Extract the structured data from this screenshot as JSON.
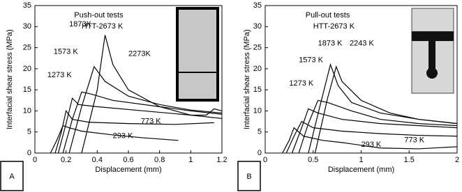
{
  "chart_data": [
    {
      "type": "line",
      "panel": "A",
      "title": "Push-out tests",
      "subtitle": "HTT-2673 K",
      "x_label": "Displacement (mm)",
      "y_label": "Interfacial shear stress (MPa)",
      "color": "#000000",
      "xlim": [
        0,
        1.2
      ],
      "xticks": [
        0,
        0.2,
        0.4,
        0.6,
        0.8,
        1,
        1.2
      ],
      "ylim": [
        0,
        35
      ],
      "yticks": [
        0,
        5,
        10,
        15,
        20,
        25,
        30,
        35
      ],
      "series": [
        {
          "name": "293 K",
          "x": [
            0.1,
            0.14,
            0.18,
            0.22,
            0.3,
            0.5,
            0.7,
            0.92
          ],
          "values": [
            0,
            3,
            6.5,
            6,
            5.2,
            4.3,
            3.6,
            3
          ]
        },
        {
          "name": "773 K",
          "x": [
            0.13,
            0.17,
            0.2,
            0.24,
            0.35,
            0.6,
            0.9,
            1.15
          ],
          "values": [
            0,
            5,
            10,
            8,
            7.3,
            7,
            6.8,
            7.2
          ]
        },
        {
          "name": "1273 K",
          "x": [
            0.15,
            0.2,
            0.24,
            0.28,
            0.4,
            0.7,
            1,
            1.2
          ],
          "values": [
            0,
            7,
            13,
            11.5,
            11,
            10,
            9,
            8.2
          ]
        },
        {
          "name": "1573 K",
          "x": [
            0.18,
            0.24,
            0.3,
            0.36,
            0.5,
            0.8,
            1,
            1.2
          ],
          "values": [
            0,
            8,
            14.5,
            14,
            12.5,
            11,
            10,
            9.2
          ]
        },
        {
          "name": "1873K",
          "x": [
            0.22,
            0.3,
            0.38,
            0.45,
            0.6,
            0.8,
            1,
            1.2
          ],
          "values": [
            0,
            11,
            20.5,
            17,
            13.5,
            11.5,
            10.2,
            9.5
          ]
        },
        {
          "name": "2273K",
          "x": [
            0.3,
            0.4,
            0.45,
            0.5,
            0.6,
            0.8,
            1,
            1.1,
            1.15,
            1.2
          ],
          "values": [
            0,
            15,
            28,
            21,
            15,
            11,
            9,
            9,
            10.5,
            10
          ]
        }
      ]
    },
    {
      "type": "line",
      "panel": "B",
      "title": "Pull-out tests",
      "subtitle": "HTT-2673 K",
      "x_label": "Displacement (mm)",
      "y_label": "Interfacial shear stress (MPa)",
      "color": "#000000",
      "xlim": [
        0,
        2
      ],
      "xticks": [
        0,
        0.5,
        1,
        1.5,
        2
      ],
      "ylim": [
        0,
        35
      ],
      "yticks": [
        0,
        5,
        10,
        15,
        20,
        25,
        30,
        35
      ],
      "series": [
        {
          "name": "293 K",
          "x": [
            0.18,
            0.25,
            0.3,
            0.4,
            0.6,
            0.8,
            1.2,
            1.6,
            2
          ],
          "values": [
            0,
            3,
            6,
            4,
            3,
            2.5,
            1.2,
            1,
            1.5
          ]
        },
        {
          "name": "773 K",
          "x": [
            0.22,
            0.3,
            0.38,
            0.5,
            0.8,
            1.2,
            1.6,
            2
          ],
          "values": [
            0,
            4,
            7.5,
            6,
            5.2,
            4.6,
            4.2,
            4
          ]
        },
        {
          "name": "1273 K",
          "x": [
            0.28,
            0.38,
            0.45,
            0.55,
            0.8,
            1.2,
            1.6,
            2
          ],
          "values": [
            0,
            6,
            10.5,
            9.5,
            8,
            7,
            6.5,
            6
          ]
        },
        {
          "name": "1573 K",
          "x": [
            0.35,
            0.45,
            0.55,
            0.65,
            0.9,
            1.2,
            1.6,
            2
          ],
          "values": [
            0,
            7,
            12.5,
            12,
            10,
            8,
            7,
            6.5
          ]
        },
        {
          "name": "1873 K",
          "x": [
            0.45,
            0.58,
            0.68,
            0.76,
            0.9,
            1.2,
            1.6,
            2
          ],
          "values": [
            0,
            12,
            21,
            16,
            12,
            9.5,
            8,
            7
          ]
        },
        {
          "name": "2243 K",
          "x": [
            0.52,
            0.65,
            0.74,
            0.8,
            1,
            1.3,
            1.6,
            2
          ],
          "values": [
            0,
            13,
            20.5,
            17,
            12.5,
            9.5,
            8,
            7
          ]
        }
      ]
    }
  ]
}
